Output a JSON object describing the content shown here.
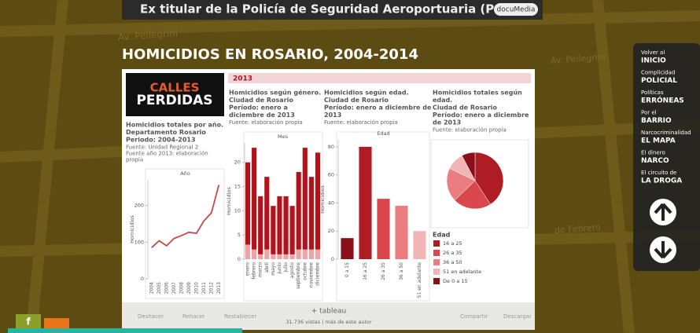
{
  "banner": {
    "headline": "Ex titular de la Policía de Seguridad Aeroportuaria (PSA)",
    "brand": "docuMedia"
  },
  "map_labels": [
    "Av. Pellegrini",
    "Av. Pellegrini",
    "de Febrero"
  ],
  "title": "HOMICIDIOS EN ROSARIO, 2004-2014",
  "logo": {
    "line1": "CALLES",
    "line2": "PERDIDAS"
  },
  "year_tab": "2013",
  "chart_data": [
    {
      "type": "line",
      "title": [
        "Homicidios totales por año.",
        "Departamento Rosario",
        "Periodo: 2004-2013"
      ],
      "source": [
        "Fuente: Unidad Regional 2",
        "Fuente año 2013: elaboración",
        "propia"
      ],
      "x_label": "Año",
      "y_label": "Homicidios",
      "categories": [
        "2004",
        "2005",
        "2006",
        "2007",
        "2008",
        "2009",
        "2010",
        "2011",
        "2012",
        "2013"
      ],
      "values": [
        85,
        104,
        90,
        110,
        118,
        127,
        124,
        158,
        180,
        256
      ],
      "color": "#c9474c",
      "ylim": [
        0,
        270
      ],
      "yticks": [
        0,
        100,
        200
      ]
    },
    {
      "type": "stacked_bar",
      "title": [
        "Homicidios según género.",
        "Ciudad de Rosario",
        "Período: enero a",
        "diciembre de 2013"
      ],
      "source": [
        "Fuente: elaboración propia"
      ],
      "x_label": "Mes",
      "y_label": "Homicidios",
      "categories": [
        "enero",
        "febrero",
        "marzo",
        "abril",
        "mayo",
        "junio",
        "julio",
        "agosto",
        "septiembre",
        "octubre",
        "noviembre",
        "diciembre"
      ],
      "series": [
        {
          "color": "#eea4a7",
          "values": [
            3,
            2,
            1,
            2,
            1,
            1,
            1,
            1,
            2,
            2,
            2,
            2
          ]
        },
        {
          "color": "#b3121b",
          "values": [
            17,
            21,
            12,
            15,
            10,
            12,
            12,
            10,
            16,
            21,
            15,
            20
          ]
        }
      ],
      "ylim": [
        0,
        24
      ],
      "yticks": [
        0,
        5,
        10,
        15,
        20
      ]
    },
    {
      "type": "bar",
      "title": [
        "Homicidios según edad.",
        "Ciudad de Rosario",
        "Período: enero a diciembre de",
        "2013"
      ],
      "source": [
        "Fuente: elaboración propia"
      ],
      "x_label": "Edad",
      "y_label": "Homicidios",
      "categories": [
        "0 a 15",
        "16 a 25",
        "26 a 35",
        "36 a 50",
        "51 en adelante"
      ],
      "values": [
        15,
        80,
        43,
        38,
        20
      ],
      "colors": [
        "#8a0f1a",
        "#b01c23",
        "#d9464b",
        "#eb7d80",
        "#f2b5b5"
      ],
      "ylim": [
        0,
        85
      ],
      "yticks": [
        0,
        20,
        40,
        60,
        80
      ]
    },
    {
      "type": "pie",
      "title": [
        "Homicidios totales según",
        "edad.",
        "Ciudad de Rosario",
        "Período: enero a diciembre",
        "de 2013"
      ],
      "source": [
        "Fuente: elaboración propia"
      ],
      "legend_title": "Edad",
      "categories": [
        "16 a 25",
        "26 a 35",
        "36 a 50",
        "51 en adelante",
        "De 0 a 15"
      ],
      "values": [
        80,
        43,
        38,
        20,
        15
      ],
      "colors": [
        "#b01c23",
        "#d9464b",
        "#eb7d80",
        "#f2b5b5",
        "#8a0f1a"
      ]
    }
  ],
  "footer": {
    "undo": "Deshacer",
    "redo": "Rehacer",
    "reset": "Restablecer",
    "brand": "+ tableau",
    "views": "31.736 vistas | más de este autor",
    "share": "Compartir",
    "download": "Descargar"
  },
  "nav": [
    {
      "small": "Volver al",
      "big": "INICIO"
    },
    {
      "small": "Complicidad",
      "big": "POLICIAL"
    },
    {
      "small": "Políticas",
      "big": "ERRÓNEAS"
    },
    {
      "small": "Por el",
      "big": "BARRIO"
    },
    {
      "small": "Narcocriminalidad",
      "big": "EL MAPA"
    },
    {
      "small": "El dinero",
      "big": "NARCO"
    },
    {
      "small": "El circuito de",
      "big": "LA DROGA"
    }
  ],
  "social": "f"
}
